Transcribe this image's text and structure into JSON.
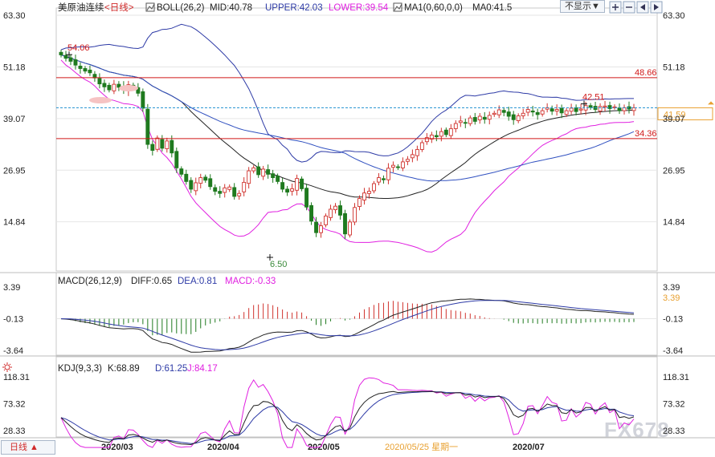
{
  "header": {
    "title": "美原油连续",
    "period": "<日线>",
    "boll_label": "BOLL(26,2)",
    "mid": "MID:40.78",
    "upper": "UPPER:42.03",
    "lower": "LOWER:39.54",
    "ma_label": "MA1(0,60,0,0)",
    "ma0": "MA0:41.5",
    "hide_button": "不显示▼"
  },
  "macd_header": {
    "label": "MACD(26,12,9)",
    "diff": "DIFF:0.65",
    "dea": "DEA:0.81",
    "macd": "MACD:-0.33"
  },
  "kdj_header": {
    "label": "KDJ(9,3,3)",
    "k": "K:68.89",
    "d": "D:61.25",
    "j": "J:84.17"
  },
  "footer": {
    "period_button": "日线 ▲",
    "dates": [
      "2020/03",
      "2020/04",
      "2020/05",
      "2020/05/25 星期一",
      "2020/07"
    ],
    "watermark": "FX678"
  },
  "colors": {
    "up": "#d0332e",
    "down": "#1f7a1f",
    "mid_line": "#222222",
    "upper_line": "#2d3aa6",
    "lower_line": "#e020e0",
    "h_line": "#d01818",
    "current": "#2090d0"
  },
  "chart_data": [
    {
      "type": "candlestick",
      "ylim": [
        6.5,
        63.3
      ],
      "y_ticks": [
        "63.30",
        "51.18",
        "39.07",
        "26.95",
        "14.84"
      ],
      "y_tick_values": [
        63.3,
        51.18,
        39.07,
        26.95,
        14.84
      ],
      "annotations": [
        {
          "label": "54.06",
          "value": 54.06
        },
        {
          "label": "42.51",
          "value": 42.51
        },
        {
          "label": "6.50",
          "value": 6.5
        }
      ],
      "horizontal_lines": [
        {
          "label": "48.66",
          "value": 48.66
        },
        {
          "label": "34.36",
          "value": 34.36
        }
      ],
      "current_price": {
        "label": "41.59",
        "value": 41.59
      }
    },
    {
      "type": "bar+line",
      "name": "MACD",
      "y_ticks": [
        "3.39",
        "-0.13",
        "-3.64"
      ],
      "y_tick_values": [
        3.39,
        -0.13,
        -3.64
      ],
      "current_label": "3.39"
    },
    {
      "type": "line",
      "name": "KDJ",
      "y_ticks": [
        "118.31",
        "73.32",
        "28.33"
      ],
      "y_tick_values": [
        118.31,
        73.32,
        28.33
      ]
    }
  ]
}
